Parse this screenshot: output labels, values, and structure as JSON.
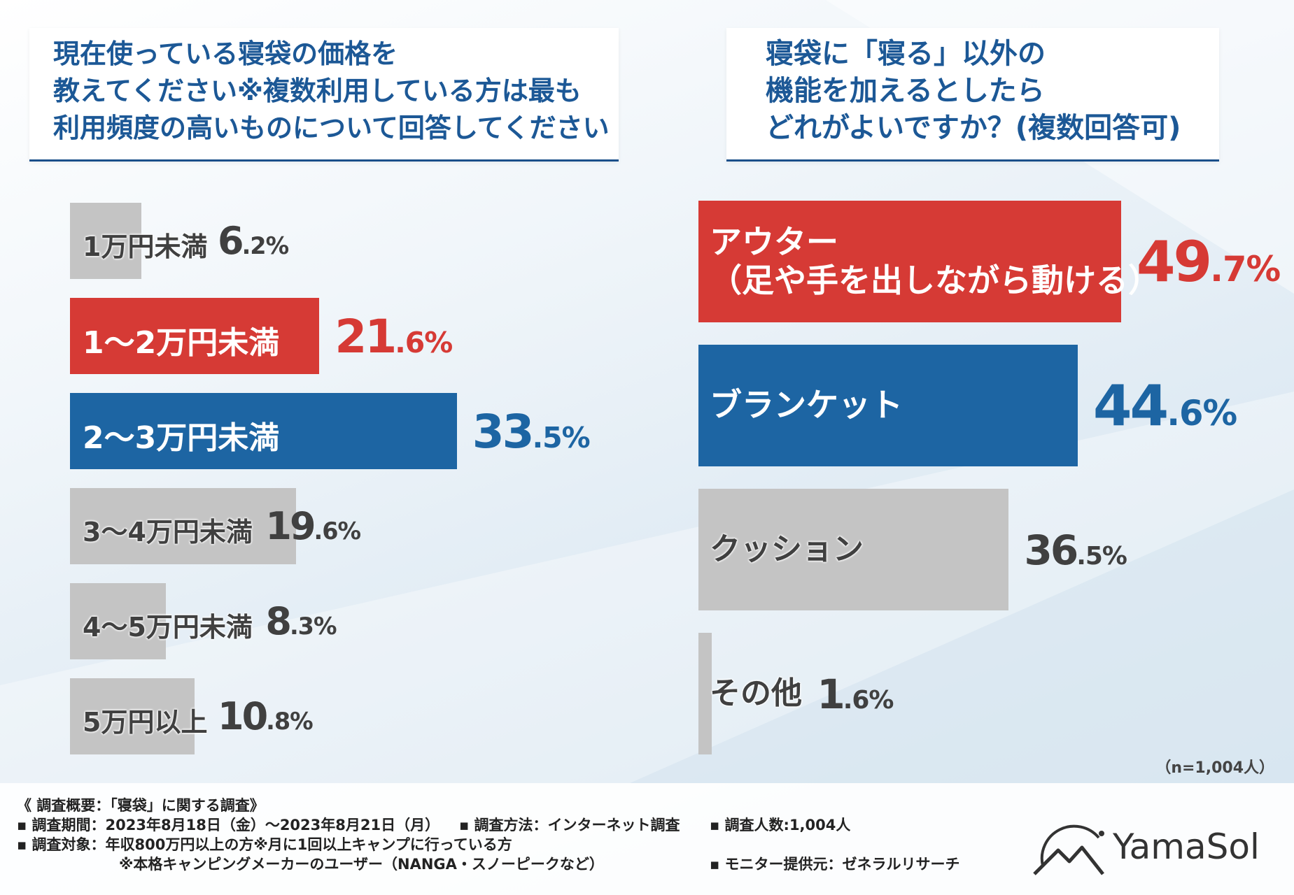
{
  "left_title": [
    "現在使っている寝袋の価格を",
    "教えてください※複数利用している方は最も",
    "利用頻度の高いものについて回答してください"
  ],
  "right_title": [
    "寝袋に「寝る」以外の",
    "機能を加えるとしたら",
    "どれがよいですか？(複数回答可)"
  ],
  "sample_note": "（n=1,004人）",
  "colors": {
    "red": "#d63a35",
    "blue": "#1d65a3",
    "gray": "#c4c4c4",
    "text_gray": "#404040"
  },
  "chart_data": [
    {
      "type": "bar",
      "orientation": "horizontal",
      "title": "現在使っている寝袋の価格を教えてください※複数利用している方は最も利用頻度の高いものについて回答してください",
      "unit": "%",
      "categories": [
        "1万円未満",
        "1〜2万円未満",
        "2〜3万円未満",
        "3〜4万円未満",
        "4〜5万円未満",
        "5万円以上"
      ],
      "values": [
        6.2,
        21.6,
        33.5,
        19.6,
        8.3,
        10.8
      ],
      "value_labels": [
        [
          "6",
          ".2%"
        ],
        [
          "21",
          ".6%"
        ],
        [
          "33",
          ".5%"
        ],
        [
          "19",
          ".6%"
        ],
        [
          "8",
          ".3%"
        ],
        [
          "10",
          ".8%"
        ]
      ],
      "highlight": [
        "gray",
        "red",
        "blue",
        "gray",
        "gray",
        "gray"
      ]
    },
    {
      "type": "bar",
      "orientation": "horizontal",
      "title": "寝袋に「寝る」以外の機能を加えるとしたらどれがよいですか？(複数回答可)",
      "unit": "%",
      "categories": [
        "アウター（足や手を出しながら動ける）",
        "ブランケット",
        "クッション",
        "その他"
      ],
      "category_lines": [
        [
          "アウター",
          "（足や手を出しながら動ける）"
        ],
        [
          "ブランケット"
        ],
        [
          "クッション"
        ],
        [
          "その他"
        ]
      ],
      "values": [
        49.7,
        44.6,
        36.5,
        1.6
      ],
      "value_labels": [
        [
          "49",
          ".7%"
        ],
        [
          "44",
          ".6%"
        ],
        [
          "36",
          ".5%"
        ],
        [
          "1",
          ".6%"
        ]
      ],
      "highlight": [
        "red",
        "blue",
        "gray",
        "gray"
      ]
    }
  ],
  "footer": {
    "summary": "《 調査概要：「寝袋」に関する調査》",
    "period": "▪ 調査期間：2023年8月18日（金）〜2023年8月21日（月）",
    "method": "▪ 調査方法：インターネット調査",
    "count": "▪ 調査人数:1,004人",
    "target": "▪ 調査対象：年収800万円以上の方※月に1回以上キャンプに行っている方",
    "target2": "※本格キャンピングメーカーのユーザー（NANGA・スノーピークなど）",
    "provider": "▪ モニター提供元：ゼネラルリサーチ",
    "logo": "YamaSol"
  }
}
